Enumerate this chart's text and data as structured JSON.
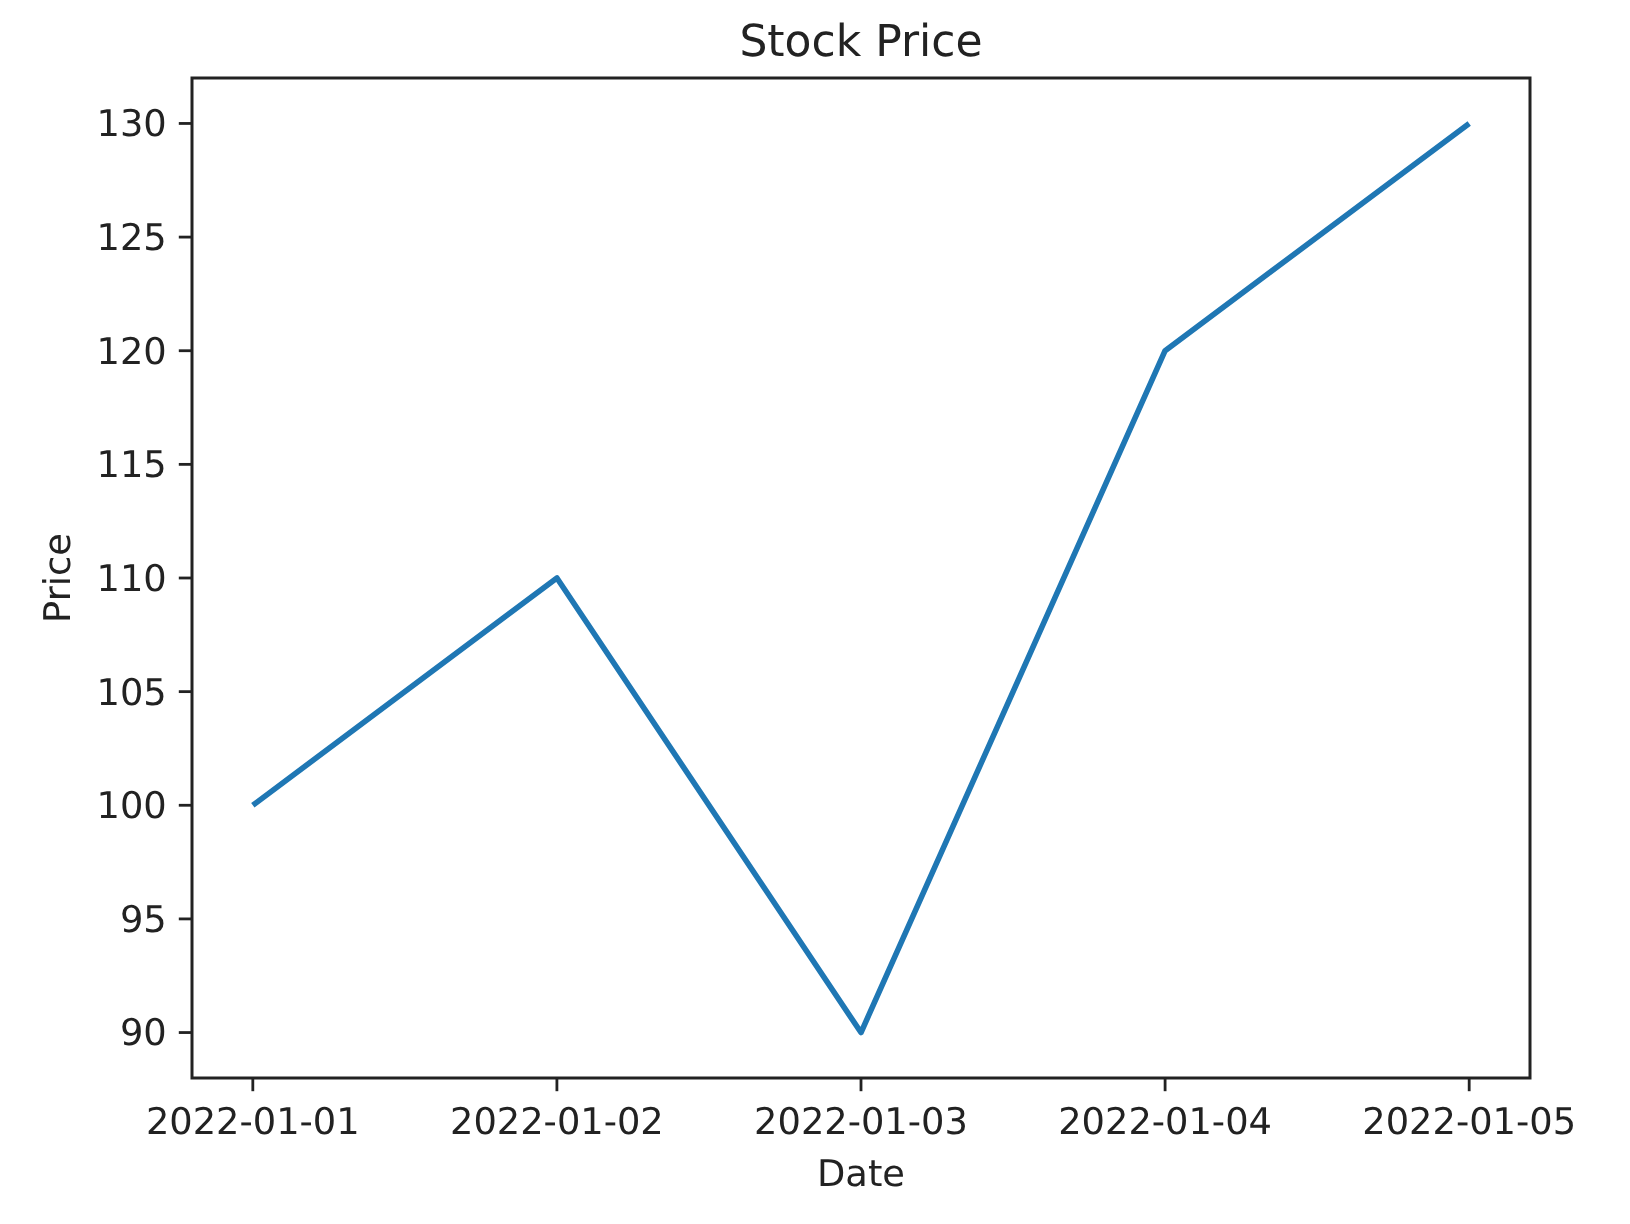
{
  "chart_data": {
    "type": "line",
    "title": "Stock Price",
    "xlabel": "Date",
    "ylabel": "Price",
    "x": [
      "2022-01-01",
      "2022-01-02",
      "2022-01-03",
      "2022-01-04",
      "2022-01-05"
    ],
    "series": [
      {
        "color": "#1f77b4",
        "values": [
          100,
          110,
          90,
          120,
          130
        ]
      }
    ],
    "xlim": [
      "2021-12-31T19:12",
      "2022-01-05T04:48"
    ],
    "xticks": [
      "2022-01-01",
      "2022-01-02",
      "2022-01-03",
      "2022-01-04",
      "2022-01-05"
    ],
    "ylim": [
      88,
      132
    ],
    "yticks": [
      90,
      95,
      100,
      105,
      110,
      115,
      120,
      125,
      130
    ],
    "line_style": "solid"
  }
}
